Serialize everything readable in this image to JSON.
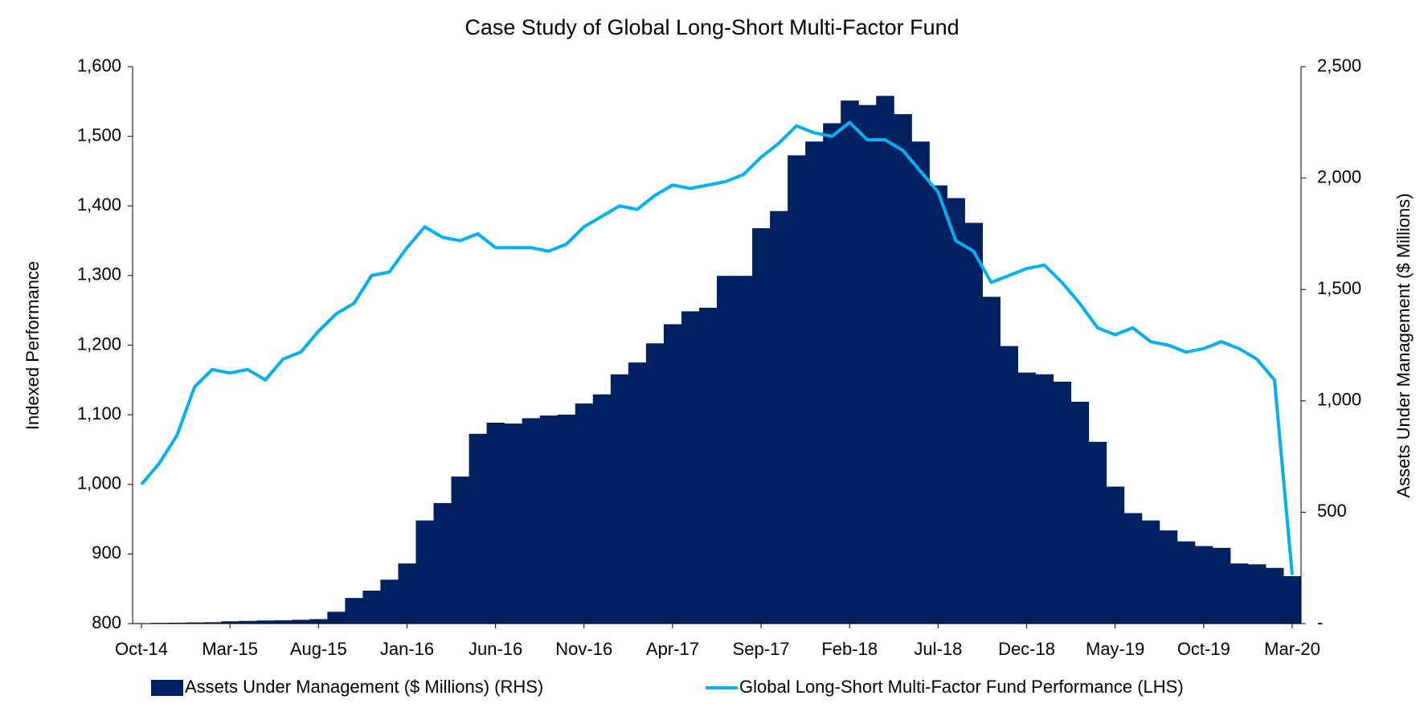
{
  "chart_data": {
    "type": "bar-line",
    "title": "Case Study of Global Long-Short Multi-Factor Fund",
    "y_label": "Indexed Performance",
    "y2_label": "Assets Under Management ($ Millions)",
    "categories": [
      "Oct-14",
      null,
      null,
      null,
      null,
      "Mar-15",
      null,
      null,
      null,
      null,
      "Aug-15",
      null,
      null,
      null,
      null,
      "Jan-16",
      null,
      null,
      null,
      null,
      "Jun-16",
      null,
      null,
      null,
      null,
      "Nov-16",
      null,
      null,
      null,
      null,
      "Apr-17",
      null,
      null,
      null,
      null,
      "Sep-17",
      null,
      null,
      null,
      null,
      "Feb-18",
      null,
      null,
      null,
      null,
      "Jul-18",
      null,
      null,
      null,
      null,
      "Dec-18",
      null,
      null,
      null,
      null,
      "May-19",
      null,
      null,
      null,
      null,
      "Oct-19",
      null,
      null,
      null,
      null,
      "Mar-20"
    ],
    "series": [
      {
        "name": "Assets Under Management ($ Millions) (RHS)",
        "type": "bar",
        "axis": "y2",
        "color": "#002060",
        "values": [
          2,
          3,
          4,
          5,
          6,
          10,
          12,
          14,
          15,
          17,
          20,
          53,
          115,
          148,
          197,
          270,
          463,
          541,
          660,
          852,
          902,
          898,
          922,
          934,
          938,
          988,
          1029,
          1119,
          1172,
          1258,
          1344,
          1402,
          1418,
          1561,
          1561,
          1775,
          1852,
          2102,
          2164,
          2246,
          2348,
          2328,
          2369,
          2287,
          2164,
          1967,
          1910,
          1799,
          1467,
          1246,
          1127,
          1119,
          1086,
          996,
          816,
          615,
          496,
          463,
          418,
          369,
          348,
          340,
          270,
          266,
          250,
          213
        ]
      },
      {
        "name": "Global Long-Short Multi-Factor Fund Performance (LHS)",
        "type": "line",
        "axis": "y",
        "color": "#00b0f0",
        "values": [
          1000,
          1030,
          1070,
          1140,
          1165,
          1160,
          1165,
          1150,
          1180,
          1190,
          1220,
          1245,
          1260,
          1300,
          1305,
          1340,
          1370,
          1355,
          1350,
          1360,
          1340,
          1340,
          1340,
          1335,
          1345,
          1370,
          1385,
          1400,
          1395,
          1415,
          1430,
          1425,
          1430,
          1435,
          1445,
          1470,
          1490,
          1515,
          1505,
          1500,
          1520,
          1495,
          1495,
          1480,
          1450,
          1420,
          1350,
          1335,
          1290,
          1300,
          1310,
          1315,
          1290,
          1260,
          1225,
          1215,
          1225,
          1205,
          1200,
          1190,
          1195,
          1205,
          1195,
          1180,
          1150,
          870
        ]
      }
    ],
    "ylim": [
      800,
      1600
    ],
    "yticks": [
      800,
      900,
      {
        "value": 1000,
        "label": "1,000"
      },
      {
        "value": 1100,
        "label": "1,100"
      },
      {
        "value": 1200,
        "label": "1,200"
      },
      {
        "value": 1300,
        "label": "1,300"
      },
      {
        "value": 1400,
        "label": "1,400"
      },
      {
        "value": 1500,
        "label": "1,500"
      },
      {
        "value": 1600,
        "label": "1,600"
      }
    ],
    "y2lim": [
      0,
      2500
    ],
    "y2ticks": [
      {
        "value": 0,
        "label": "-"
      },
      500,
      {
        "value": 1000,
        "label": "1,000"
      },
      {
        "value": 1500,
        "label": "1,500"
      },
      {
        "value": 2000,
        "label": "2,000"
      },
      {
        "value": 2500,
        "label": "2,500"
      }
    ],
    "legend": "bottom"
  }
}
